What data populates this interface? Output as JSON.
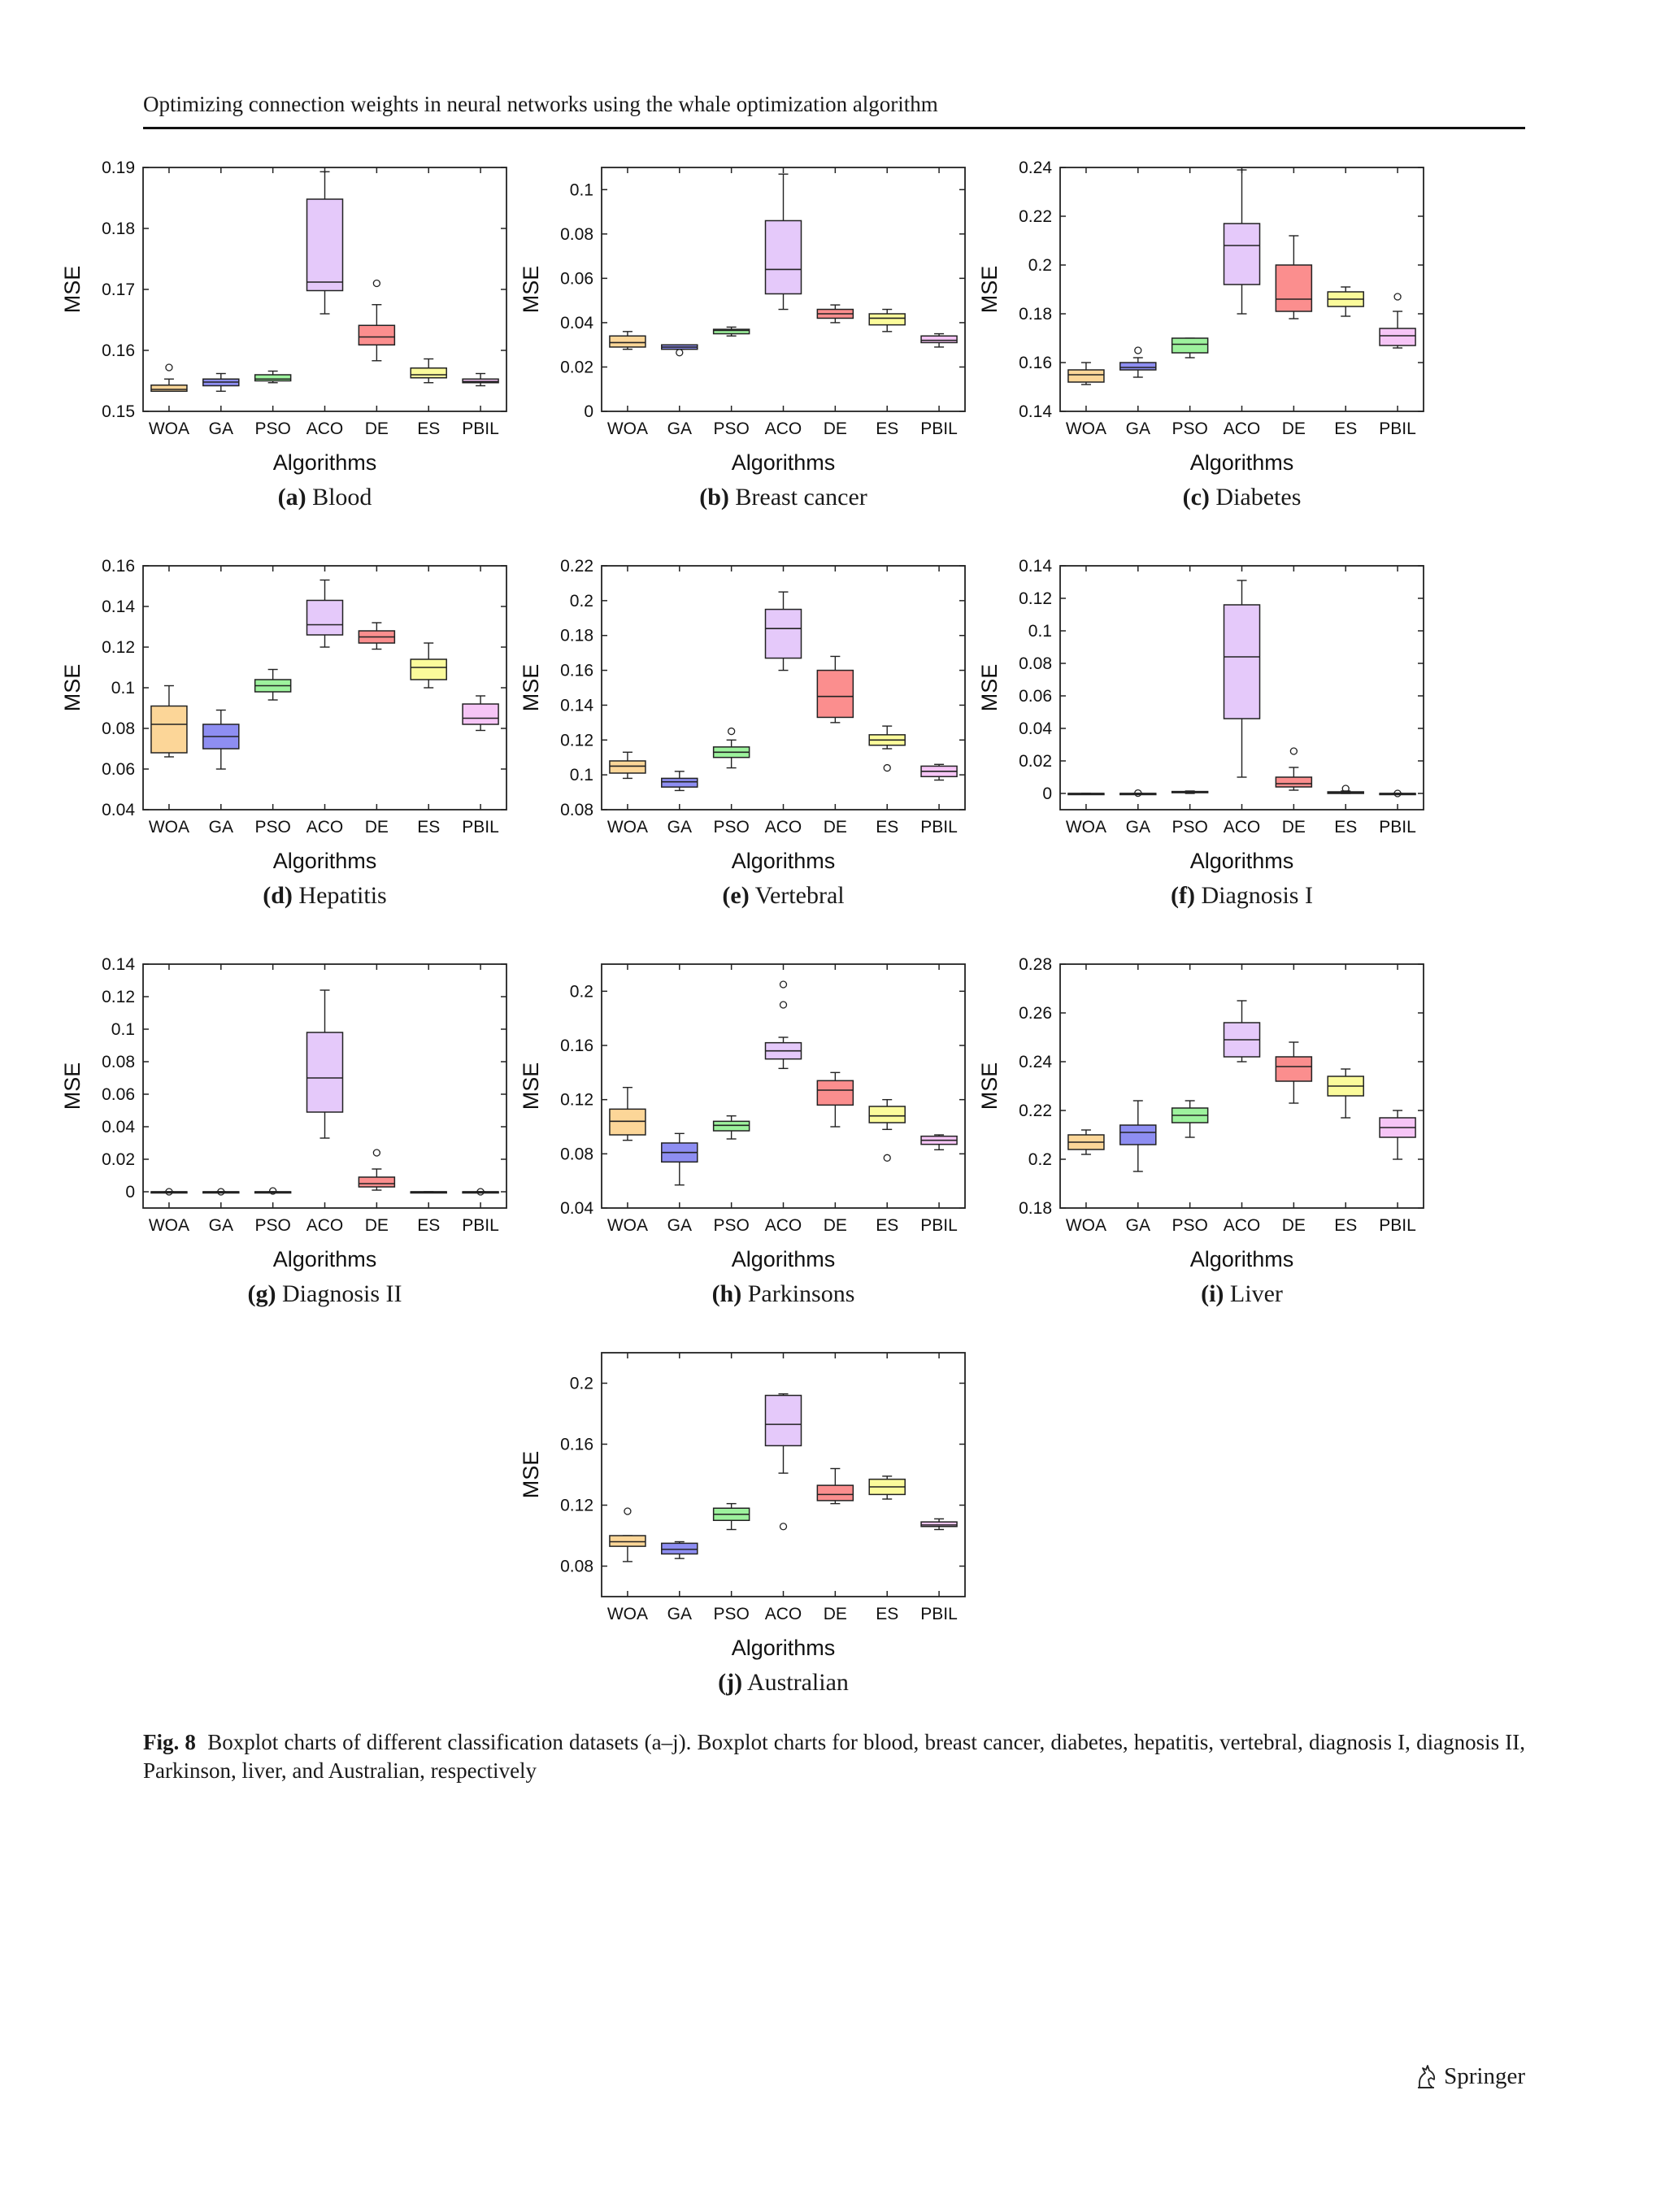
{
  "header": {
    "running_head": "Optimizing connection weights in neural networks using the whale optimization algorithm"
  },
  "figure": {
    "label": "Fig. 8",
    "caption_text": "Boxplot charts of different classification datasets (a–j). Boxplot charts for blood, breast cancer, diabetes, hepatitis, vertebral, diagnosis I, diagnosis II, Parkinson, liver, and Australian, respectively",
    "colors": {
      "WOA": "#fcd698",
      "GA": "#8e8ef2",
      "PSO": "#9df29d",
      "ACO": "#e5c9fa",
      "DE": "#fb8e8e",
      "ES": "#fbfb9b",
      "PBIL": "#f6c5f6",
      "stroke": "#222222"
    }
  },
  "chart_data": [
    {
      "type": "boxplot",
      "panel": "(a)",
      "caption": "Blood",
      "xlabel": "Algorithms",
      "ylabel": "MSE",
      "ylim": [
        0.15,
        0.19
      ],
      "yticks": [
        "0.15",
        "0.16",
        "0.17",
        "0.18",
        "0.19"
      ],
      "categories": [
        "WOA",
        "GA",
        "PSO",
        "ACO",
        "DE",
        "ES",
        "PBIL"
      ],
      "boxes": [
        {
          "min": 0.1533,
          "q1": 0.1533,
          "median": 0.1536,
          "q3": 0.1543,
          "max": 0.1553,
          "outliers": [
            0.1572
          ]
        },
        {
          "min": 0.1533,
          "q1": 0.1542,
          "median": 0.1548,
          "q3": 0.1553,
          "max": 0.1562,
          "outliers": []
        },
        {
          "min": 0.1547,
          "q1": 0.155,
          "median": 0.1553,
          "q3": 0.156,
          "max": 0.1566,
          "outliers": []
        },
        {
          "min": 0.166,
          "q1": 0.1698,
          "median": 0.1712,
          "q3": 0.1848,
          "max": 0.1893,
          "outliers": []
        },
        {
          "min": 0.1583,
          "q1": 0.1609,
          "median": 0.1622,
          "q3": 0.1641,
          "max": 0.1675,
          "outliers": [
            0.171
          ]
        },
        {
          "min": 0.1547,
          "q1": 0.1555,
          "median": 0.156,
          "q3": 0.1571,
          "max": 0.1586,
          "outliers": []
        },
        {
          "min": 0.1542,
          "q1": 0.1547,
          "median": 0.1549,
          "q3": 0.1553,
          "max": 0.1562,
          "outliers": []
        }
      ]
    },
    {
      "type": "boxplot",
      "panel": "(b)",
      "caption": "Breast cancer",
      "xlabel": "Algorithms",
      "ylabel": "MSE",
      "ylim": [
        0,
        0.11
      ],
      "yticks": [
        "0",
        "0.02",
        "0.04",
        "0.06",
        "0.08",
        "0.1"
      ],
      "categories": [
        "WOA",
        "GA",
        "PSO",
        "ACO",
        "DE",
        "ES",
        "PBIL"
      ],
      "boxes": [
        {
          "min": 0.028,
          "q1": 0.029,
          "median": 0.031,
          "q3": 0.034,
          "max": 0.036,
          "outliers": []
        },
        {
          "min": 0.028,
          "q1": 0.028,
          "median": 0.029,
          "q3": 0.03,
          "max": 0.03,
          "outliers": [
            0.0265
          ]
        },
        {
          "min": 0.034,
          "q1": 0.035,
          "median": 0.0365,
          "q3": 0.037,
          "max": 0.038,
          "outliers": []
        },
        {
          "min": 0.046,
          "q1": 0.053,
          "median": 0.064,
          "q3": 0.086,
          "max": 0.107,
          "outliers": []
        },
        {
          "min": 0.04,
          "q1": 0.042,
          "median": 0.044,
          "q3": 0.046,
          "max": 0.048,
          "outliers": []
        },
        {
          "min": 0.036,
          "q1": 0.039,
          "median": 0.042,
          "q3": 0.044,
          "max": 0.046,
          "outliers": []
        },
        {
          "min": 0.029,
          "q1": 0.031,
          "median": 0.032,
          "q3": 0.034,
          "max": 0.035,
          "outliers": []
        }
      ]
    },
    {
      "type": "boxplot",
      "panel": "(c)",
      "caption": "Diabetes",
      "xlabel": "Algorithms",
      "ylabel": "MSE",
      "ylim": [
        0.14,
        0.24
      ],
      "yticks": [
        "0.14",
        "0.16",
        "0.18",
        "0.2",
        "0.22",
        "0.24"
      ],
      "categories": [
        "WOA",
        "GA",
        "PSO",
        "ACO",
        "DE",
        "ES",
        "PBIL"
      ],
      "boxes": [
        {
          "min": 0.151,
          "q1": 0.152,
          "median": 0.155,
          "q3": 0.157,
          "max": 0.16,
          "outliers": []
        },
        {
          "min": 0.154,
          "q1": 0.157,
          "median": 0.158,
          "q3": 0.16,
          "max": 0.162,
          "outliers": [
            0.165
          ]
        },
        {
          "min": 0.162,
          "q1": 0.164,
          "median": 0.1675,
          "q3": 0.17,
          "max": 0.17,
          "outliers": []
        },
        {
          "min": 0.18,
          "q1": 0.192,
          "median": 0.208,
          "q3": 0.217,
          "max": 0.239,
          "outliers": []
        },
        {
          "min": 0.178,
          "q1": 0.181,
          "median": 0.186,
          "q3": 0.2,
          "max": 0.212,
          "outliers": []
        },
        {
          "min": 0.179,
          "q1": 0.183,
          "median": 0.186,
          "q3": 0.189,
          "max": 0.191,
          "outliers": []
        },
        {
          "min": 0.166,
          "q1": 0.167,
          "median": 0.171,
          "q3": 0.174,
          "max": 0.181,
          "outliers": [
            0.187
          ]
        }
      ]
    },
    {
      "type": "boxplot",
      "panel": "(d)",
      "caption": "Hepatitis",
      "xlabel": "Algorithms",
      "ylabel": "MSE",
      "ylim": [
        0.04,
        0.16
      ],
      "yticks": [
        "0.04",
        "0.06",
        "0.08",
        "0.1",
        "0.12",
        "0.14",
        "0.16"
      ],
      "categories": [
        "WOA",
        "GA",
        "PSO",
        "ACO",
        "DE",
        "ES",
        "PBIL"
      ],
      "boxes": [
        {
          "min": 0.066,
          "q1": 0.068,
          "median": 0.082,
          "q3": 0.091,
          "max": 0.101,
          "outliers": []
        },
        {
          "min": 0.06,
          "q1": 0.07,
          "median": 0.076,
          "q3": 0.082,
          "max": 0.089,
          "outliers": []
        },
        {
          "min": 0.094,
          "q1": 0.098,
          "median": 0.101,
          "q3": 0.104,
          "max": 0.109,
          "outliers": []
        },
        {
          "min": 0.12,
          "q1": 0.126,
          "median": 0.131,
          "q3": 0.143,
          "max": 0.153,
          "outliers": []
        },
        {
          "min": 0.119,
          "q1": 0.122,
          "median": 0.125,
          "q3": 0.128,
          "max": 0.132,
          "outliers": []
        },
        {
          "min": 0.1,
          "q1": 0.104,
          "median": 0.11,
          "q3": 0.114,
          "max": 0.122,
          "outliers": []
        },
        {
          "min": 0.079,
          "q1": 0.082,
          "median": 0.085,
          "q3": 0.092,
          "max": 0.096,
          "outliers": []
        }
      ]
    },
    {
      "type": "boxplot",
      "panel": "(e)",
      "caption": "Vertebral",
      "xlabel": "Algorithms",
      "ylabel": "MSE",
      "ylim": [
        0.08,
        0.22
      ],
      "yticks": [
        "0.08",
        "0.1",
        "0.12",
        "0.14",
        "0.16",
        "0.18",
        "0.2",
        "0.22"
      ],
      "categories": [
        "WOA",
        "GA",
        "PSO",
        "ACO",
        "DE",
        "ES",
        "PBIL"
      ],
      "boxes": [
        {
          "min": 0.098,
          "q1": 0.101,
          "median": 0.105,
          "q3": 0.108,
          "max": 0.113,
          "outliers": []
        },
        {
          "min": 0.091,
          "q1": 0.093,
          "median": 0.096,
          "q3": 0.098,
          "max": 0.102,
          "outliers": []
        },
        {
          "min": 0.104,
          "q1": 0.11,
          "median": 0.113,
          "q3": 0.116,
          "max": 0.12,
          "outliers": [
            0.125
          ]
        },
        {
          "min": 0.16,
          "q1": 0.167,
          "median": 0.184,
          "q3": 0.195,
          "max": 0.205,
          "outliers": []
        },
        {
          "min": 0.13,
          "q1": 0.133,
          "median": 0.145,
          "q3": 0.16,
          "max": 0.168,
          "outliers": []
        },
        {
          "min": 0.115,
          "q1": 0.117,
          "median": 0.12,
          "q3": 0.123,
          "max": 0.128,
          "outliers": [
            0.104
          ]
        },
        {
          "min": 0.097,
          "q1": 0.099,
          "median": 0.102,
          "q3": 0.105,
          "max": 0.106,
          "outliers": []
        }
      ]
    },
    {
      "type": "boxplot",
      "panel": "(f)",
      "caption": "Diagnosis I",
      "xlabel": "Algorithms",
      "ylabel": "MSE",
      "ylim": [
        -0.01,
        0.14
      ],
      "yticks": [
        "0",
        "0.02",
        "0.04",
        "0.06",
        "0.08",
        "0.1",
        "0.12",
        "0.14"
      ],
      "categories": [
        "WOA",
        "GA",
        "PSO",
        "ACO",
        "DE",
        "ES",
        "PBIL"
      ],
      "boxes": [
        {
          "min": 0,
          "q1": 0,
          "median": 0,
          "q3": 0,
          "max": 0,
          "outliers": []
        },
        {
          "min": 0,
          "q1": 0,
          "median": 0,
          "q3": 0,
          "max": 0,
          "outliers": [
            0.0002
          ]
        },
        {
          "min": 0,
          "q1": 0.0005,
          "median": 0.0008,
          "q3": 0.0012,
          "max": 0.0015,
          "outliers": []
        },
        {
          "min": 0.01,
          "q1": 0.046,
          "median": 0.084,
          "q3": 0.116,
          "max": 0.131,
          "outliers": []
        },
        {
          "min": 0.002,
          "q1": 0.004,
          "median": 0.006,
          "q3": 0.01,
          "max": 0.016,
          "outliers": [
            0.026
          ]
        },
        {
          "min": 0,
          "q1": 0,
          "median": 0.0005,
          "q3": 0.001,
          "max": 0.0015,
          "outliers": [
            0.003
          ]
        },
        {
          "min": 0,
          "q1": 0,
          "median": 0,
          "q3": 0,
          "max": 0,
          "outliers": [
            0
          ]
        }
      ]
    },
    {
      "type": "boxplot",
      "panel": "(g)",
      "caption": "Diagnosis II",
      "xlabel": "Algorithms",
      "ylabel": "MSE",
      "ylim": [
        -0.01,
        0.14
      ],
      "yticks": [
        "0",
        "0.02",
        "0.04",
        "0.06",
        "0.08",
        "0.1",
        "0.12",
        "0.14"
      ],
      "categories": [
        "WOA",
        "GA",
        "PSO",
        "ACO",
        "DE",
        "ES",
        "PBIL"
      ],
      "boxes": [
        {
          "min": 0,
          "q1": 0,
          "median": 0,
          "q3": 0,
          "max": 0,
          "outliers": [
            0
          ]
        },
        {
          "min": 0,
          "q1": 0,
          "median": 0,
          "q3": 0,
          "max": 0,
          "outliers": [
            0
          ]
        },
        {
          "min": 0,
          "q1": 0,
          "median": 0,
          "q3": 0,
          "max": 0,
          "outliers": [
            0.0005
          ]
        },
        {
          "min": 0.033,
          "q1": 0.049,
          "median": 0.07,
          "q3": 0.098,
          "max": 0.124,
          "outliers": []
        },
        {
          "min": 0.001,
          "q1": 0.003,
          "median": 0.005,
          "q3": 0.009,
          "max": 0.014,
          "outliers": [
            0.024
          ]
        },
        {
          "min": 0,
          "q1": 0,
          "median": 0,
          "q3": 0,
          "max": 0,
          "outliers": []
        },
        {
          "min": 0,
          "q1": 0,
          "median": 0,
          "q3": 0,
          "max": 0,
          "outliers": [
            0
          ]
        }
      ]
    },
    {
      "type": "boxplot",
      "panel": "(h)",
      "caption": "Parkinsons",
      "xlabel": "Algorithms",
      "ylabel": "MSE",
      "ylim": [
        0.04,
        0.22
      ],
      "yticks": [
        "0.04",
        "0.08",
        "0.12",
        "0.16",
        "0.2"
      ],
      "categories": [
        "WOA",
        "GA",
        "PSO",
        "ACO",
        "DE",
        "ES",
        "PBIL"
      ],
      "boxes": [
        {
          "min": 0.09,
          "q1": 0.094,
          "median": 0.104,
          "q3": 0.113,
          "max": 0.129,
          "outliers": []
        },
        {
          "min": 0.057,
          "q1": 0.074,
          "median": 0.081,
          "q3": 0.088,
          "max": 0.095,
          "outliers": []
        },
        {
          "min": 0.091,
          "q1": 0.097,
          "median": 0.101,
          "q3": 0.104,
          "max": 0.108,
          "outliers": []
        },
        {
          "min": 0.143,
          "q1": 0.15,
          "median": 0.156,
          "q3": 0.162,
          "max": 0.166,
          "outliers": [
            0.19,
            0.205
          ]
        },
        {
          "min": 0.1,
          "q1": 0.116,
          "median": 0.127,
          "q3": 0.134,
          "max": 0.14,
          "outliers": []
        },
        {
          "min": 0.098,
          "q1": 0.103,
          "median": 0.108,
          "q3": 0.115,
          "max": 0.12,
          "outliers": [
            0.077
          ]
        },
        {
          "min": 0.083,
          "q1": 0.087,
          "median": 0.09,
          "q3": 0.093,
          "max": 0.094,
          "outliers": []
        }
      ]
    },
    {
      "type": "boxplot",
      "panel": "(i)",
      "caption": "Liver",
      "xlabel": "Algorithms",
      "ylabel": "MSE",
      "ylim": [
        0.18,
        0.28
      ],
      "yticks": [
        "0.18",
        "0.2",
        "0.22",
        "0.24",
        "0.26",
        "0.28"
      ],
      "categories": [
        "WOA",
        "GA",
        "PSO",
        "ACO",
        "DE",
        "ES",
        "PBIL"
      ],
      "boxes": [
        {
          "min": 0.202,
          "q1": 0.204,
          "median": 0.207,
          "q3": 0.21,
          "max": 0.212,
          "outliers": []
        },
        {
          "min": 0.195,
          "q1": 0.206,
          "median": 0.211,
          "q3": 0.214,
          "max": 0.224,
          "outliers": []
        },
        {
          "min": 0.209,
          "q1": 0.215,
          "median": 0.218,
          "q3": 0.221,
          "max": 0.224,
          "outliers": []
        },
        {
          "min": 0.24,
          "q1": 0.242,
          "median": 0.249,
          "q3": 0.256,
          "max": 0.265,
          "outliers": []
        },
        {
          "min": 0.223,
          "q1": 0.232,
          "median": 0.238,
          "q3": 0.242,
          "max": 0.248,
          "outliers": []
        },
        {
          "min": 0.217,
          "q1": 0.226,
          "median": 0.23,
          "q3": 0.234,
          "max": 0.237,
          "outliers": []
        },
        {
          "min": 0.2,
          "q1": 0.209,
          "median": 0.213,
          "q3": 0.217,
          "max": 0.22,
          "outliers": []
        }
      ]
    },
    {
      "type": "boxplot",
      "panel": "(j)",
      "caption": "Australian",
      "xlabel": "Algorithms",
      "ylabel": "MSE",
      "ylim": [
        0.06,
        0.22
      ],
      "yticks": [
        "0.08",
        "0.12",
        "0.16",
        "0.2"
      ],
      "categories": [
        "WOA",
        "GA",
        "PSO",
        "ACO",
        "DE",
        "ES",
        "PBIL"
      ],
      "boxes": [
        {
          "min": 0.083,
          "q1": 0.093,
          "median": 0.096,
          "q3": 0.1,
          "max": 0.1,
          "outliers": [
            0.116
          ]
        },
        {
          "min": 0.085,
          "q1": 0.088,
          "median": 0.091,
          "q3": 0.095,
          "max": 0.096,
          "outliers": []
        },
        {
          "min": 0.104,
          "q1": 0.11,
          "median": 0.114,
          "q3": 0.118,
          "max": 0.121,
          "outliers": []
        },
        {
          "min": 0.141,
          "q1": 0.159,
          "median": 0.173,
          "q3": 0.192,
          "max": 0.193,
          "outliers": [
            0.106
          ]
        },
        {
          "min": 0.121,
          "q1": 0.123,
          "median": 0.127,
          "q3": 0.133,
          "max": 0.144,
          "outliers": []
        },
        {
          "min": 0.124,
          "q1": 0.127,
          "median": 0.132,
          "q3": 0.137,
          "max": 0.139,
          "outliers": []
        },
        {
          "min": 0.104,
          "q1": 0.106,
          "median": 0.107,
          "q3": 0.109,
          "max": 0.111,
          "outliers": []
        }
      ]
    }
  ],
  "footer": {
    "publisher": "Springer"
  }
}
